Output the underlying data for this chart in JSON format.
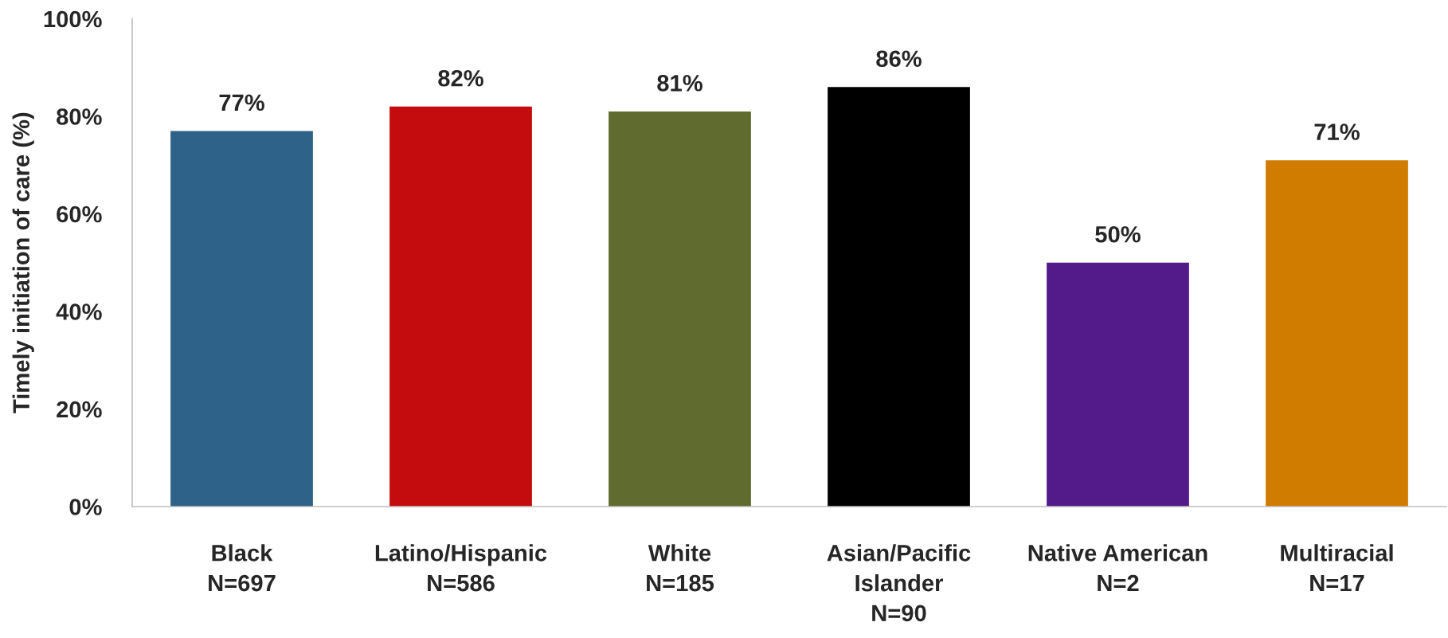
{
  "chart_data": {
    "type": "bar",
    "ylabel": "Timely initiation of care (%)",
    "categories": [
      "Black\nN=697",
      "Latino/Hispanic\nN=586",
      "White\nN=185",
      "Asian/Pacific\nIslander\nN=90",
      "Native American\nN=2",
      "Multiracial\nN=17"
    ],
    "values": [
      77,
      82,
      81,
      86,
      50,
      71
    ],
    "colors": [
      "#2e6289",
      "#c40b0d",
      "#5f6b2f",
      "#000000",
      "#531a89",
      "#d07c00"
    ],
    "value_labels": [
      "77%",
      "82%",
      "81%",
      "86%",
      "50%",
      "71%"
    ],
    "ylim": [
      0,
      100
    ],
    "yticks": [
      {
        "value": 0,
        "label": "0%"
      },
      {
        "value": 20,
        "label": "20%"
      },
      {
        "value": 40,
        "label": "40%"
      },
      {
        "value": 60,
        "label": "60%"
      },
      {
        "value": 80,
        "label": "80%"
      },
      {
        "value": 100,
        "label": "100%"
      }
    ],
    "grid": false
  }
}
